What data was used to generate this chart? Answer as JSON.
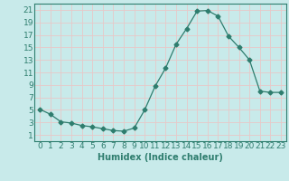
{
  "x": [
    0,
    1,
    2,
    3,
    4,
    5,
    6,
    7,
    8,
    9,
    10,
    11,
    12,
    13,
    14,
    15,
    16,
    17,
    18,
    19,
    20,
    21,
    22,
    23
  ],
  "y": [
    5.1,
    4.3,
    3.1,
    2.9,
    2.5,
    2.3,
    2.0,
    1.7,
    1.6,
    2.1,
    5.0,
    8.8,
    11.7,
    15.5,
    18.0,
    20.8,
    20.9,
    20.0,
    16.8,
    15.0,
    13.0,
    8.0,
    7.8,
    7.8
  ],
  "line_color": "#2e7d6e",
  "marker": "D",
  "marker_size": 2.5,
  "bg_color": "#c8eaea",
  "grid_color": "#e8c8c8",
  "xlabel": "Humidex (Indice chaleur)",
  "xticks": [
    0,
    1,
    2,
    3,
    4,
    5,
    6,
    7,
    8,
    9,
    10,
    11,
    12,
    13,
    14,
    15,
    16,
    17,
    18,
    19,
    20,
    21,
    22,
    23
  ],
  "yticks": [
    1,
    3,
    5,
    7,
    9,
    11,
    13,
    15,
    17,
    19,
    21
  ],
  "ylim": [
    0,
    22
  ],
  "xlim": [
    -0.5,
    23.5
  ],
  "label_fontsize": 7,
  "tick_fontsize": 6.5
}
